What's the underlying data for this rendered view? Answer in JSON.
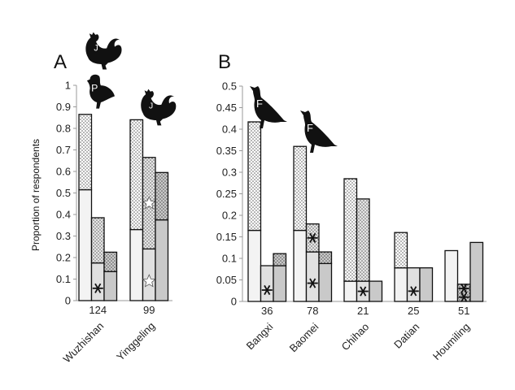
{
  "ylabel": "Proportion of respondents",
  "colors": {
    "bar1": "#f3f3f3",
    "bar2": "#e0e0e0",
    "bar3": "#c9c9c9",
    "dots": "#555555",
    "outline": "#111111"
  },
  "chart_data": [
    {
      "type": "bar",
      "panel": "A",
      "stacked": true,
      "ylim": [
        0,
        1
      ],
      "yticks": [
        "0",
        "0.1",
        "0.2",
        "0.3",
        "0.4",
        "0.5",
        "0.6",
        "0.7",
        "0.8",
        "0.9",
        "1"
      ],
      "grid": false,
      "groups": [
        {
          "name": "Wuzhishan",
          "n": "124",
          "bars": [
            {
              "solid": 0.515,
              "total": 0.865,
              "markers": []
            },
            {
              "solid": 0.175,
              "total": 0.385,
              "markers": [
                "asterisk-solid"
              ]
            },
            {
              "solid": 0.135,
              "total": 0.225,
              "markers": []
            }
          ]
        },
        {
          "name": "Yinggeling",
          "n": "99",
          "bars": [
            {
              "solid": 0.33,
              "total": 0.84,
              "markers": []
            },
            {
              "solid": 0.24,
              "total": 0.665,
              "markers": [
                "star-solid",
                "star-dotted"
              ]
            },
            {
              "solid": 0.375,
              "total": 0.595,
              "markers": []
            }
          ]
        }
      ],
      "icons": [
        {
          "name": "rooster-icon",
          "letter": "J"
        },
        {
          "name": "partridge-icon",
          "letter": "P"
        },
        {
          "name": "rooster-icon",
          "letter": "J"
        }
      ]
    },
    {
      "type": "bar",
      "panel": "B",
      "stacked": true,
      "ylim": [
        0,
        0.5
      ],
      "yticks": [
        "0",
        "0.05",
        "0.1",
        "0.15",
        "0.2",
        "0.25",
        "0.3",
        "0.35",
        "0.4",
        "0.45",
        "0.5"
      ],
      "grid": false,
      "groups": [
        {
          "name": "Bangxi",
          "n": "36",
          "bars": [
            {
              "solid": 0.165,
              "total": 0.417,
              "markers": []
            },
            {
              "solid": 0.083,
              "total": 0.083,
              "markers": [
                "asterisk-solid"
              ]
            },
            {
              "solid": 0.083,
              "total": 0.111,
              "markers": []
            }
          ]
        },
        {
          "name": "Baomei",
          "n": "78",
          "bars": [
            {
              "solid": 0.165,
              "total": 0.36,
              "markers": []
            },
            {
              "solid": 0.115,
              "total": 0.18,
              "markers": [
                "asterisk-solid",
                "asterisk-dotted"
              ]
            },
            {
              "solid": 0.088,
              "total": 0.115,
              "markers": []
            }
          ]
        },
        {
          "name": "Chihao",
          "n": "21",
          "bars": [
            {
              "solid": 0.047,
              "total": 0.285,
              "markers": []
            },
            {
              "solid": 0.047,
              "total": 0.238,
              "markers": [
                "asterisk-solid"
              ]
            },
            {
              "solid": 0.047,
              "total": 0.047,
              "markers": []
            }
          ]
        },
        {
          "name": "Datian",
          "n": "25",
          "bars": [
            {
              "solid": 0.078,
              "total": 0.16,
              "markers": []
            },
            {
              "solid": 0.078,
              "total": 0.078,
              "markers": [
                "asterisk-solid"
              ]
            },
            {
              "solid": 0.078,
              "total": 0.078,
              "markers": []
            }
          ]
        },
        {
          "name": "Houmiling",
          "n": "51",
          "bars": [
            {
              "solid": 0.118,
              "total": 0.118,
              "markers": []
            },
            {
              "solid": 0.0,
              "total": 0.04,
              "markers": [
                "asterisk-dotted",
                "asterisk-dotted"
              ]
            },
            {
              "solid": 0.137,
              "total": 0.137,
              "markers": []
            }
          ]
        }
      ],
      "icons": [
        {
          "name": "francolin-icon",
          "letter": "F"
        },
        {
          "name": "francolin-icon",
          "letter": "F"
        }
      ]
    }
  ]
}
